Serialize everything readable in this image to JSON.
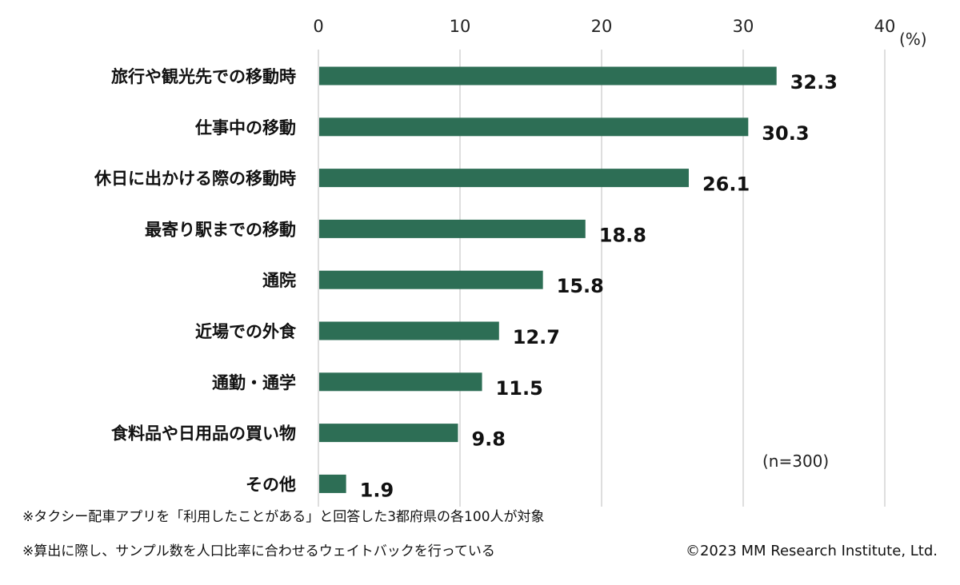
{
  "chart_data": {
    "type": "bar",
    "orientation": "horizontal",
    "categories": [
      "旅行や観光先での移動時",
      "仕事中の移動",
      "休日に出かける際の移動時",
      "最寄り駅までの移動",
      "通院",
      "近場での外食",
      "通勤・通学",
      "食料品や日用品の買い物",
      "その他"
    ],
    "values": [
      32.3,
      30.3,
      26.1,
      18.8,
      15.8,
      12.7,
      11.5,
      9.8,
      1.9
    ],
    "value_labels": [
      "32.3",
      "30.3",
      "26.1",
      "18.8",
      "15.8",
      "12.7",
      "11.5",
      "9.8",
      "1.9"
    ],
    "xlim": [
      0,
      40
    ],
    "ticks": [
      "0",
      "10",
      "20",
      "30",
      "40"
    ],
    "unit": "(%)",
    "sample_note": "(n=300)",
    "grid": "vertical",
    "bar_color": "#2d6e55"
  },
  "notes": [
    "※タクシー配車アプリを「利用したことがある」と回答した3都府県の各100人が対象",
    "※算出に際し、サンプル数を人口比率に合わせるウェイトバックを行っている"
  ],
  "copyright": "©2023 MM Research Institute, Ltd."
}
